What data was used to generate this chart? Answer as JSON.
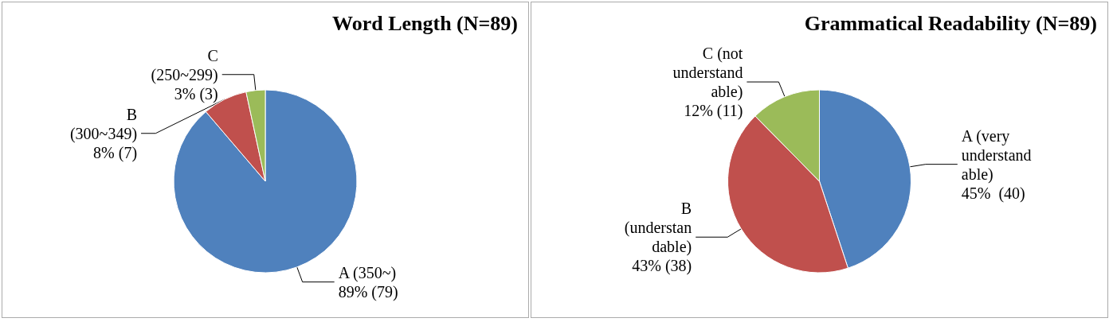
{
  "chart_data": [
    {
      "type": "pie",
      "title": "Word Length (N=89)",
      "categories": [
        "A (350~)",
        "B\n(300~349)",
        "C\n(250~299)"
      ],
      "values": [
        79,
        7,
        3
      ],
      "value_labels": [
        "89% (79)",
        "8% (7)",
        "3% (3)"
      ],
      "colors": [
        "#4f81bd",
        "#c0504d",
        "#9bbb59"
      ],
      "legend": false
    },
    {
      "type": "pie",
      "title": "Grammatical Readability (N=89)",
      "categories": [
        "A (very\nunderstand\nable)",
        "B\n(understan\ndable)",
        "C (not\nunderstand\nable)"
      ],
      "values": [
        40,
        38,
        11
      ],
      "value_labels": [
        "45%  (40)",
        "43% (38)",
        "12% (11)"
      ],
      "colors": [
        "#4f81bd",
        "#c0504d",
        "#9bbb59"
      ],
      "legend": false
    }
  ]
}
